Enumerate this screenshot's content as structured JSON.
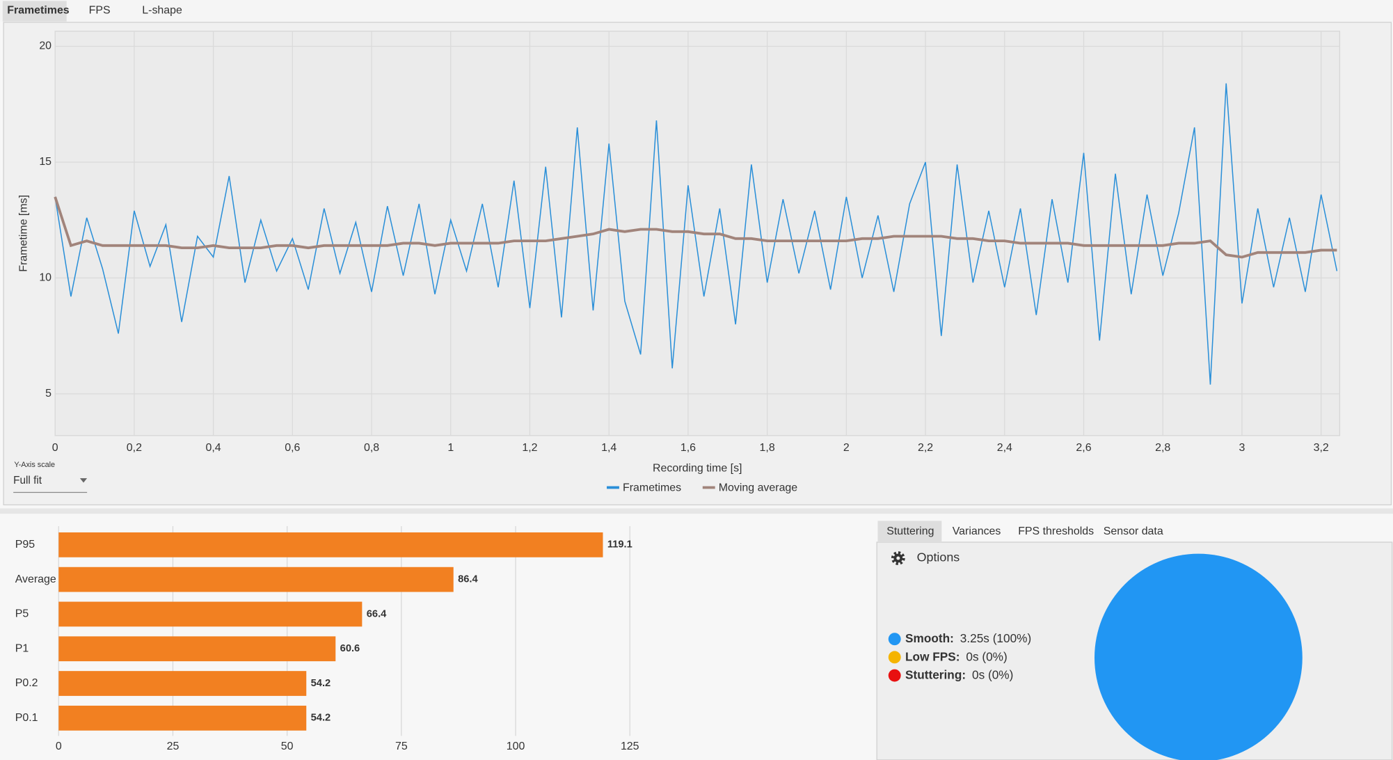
{
  "tabs": [
    "Frametimes",
    "FPS",
    "L-shape"
  ],
  "y_axis_scale": {
    "label": "Y-Axis scale",
    "value": "Full fit"
  },
  "analysis_tabs": [
    "Stuttering",
    "Variances",
    "FPS thresholds",
    "Sensor data"
  ],
  "options": "Options",
  "chart_data": [
    {
      "type": "line",
      "ylabel": "Frametime [ms]",
      "xlabel": "Recording time [s]",
      "xlim": [
        0,
        3.247
      ],
      "ylim": [
        3.2,
        20.65
      ],
      "grid": true,
      "legend": "bottom",
      "yticks": [
        5,
        10,
        15,
        20
      ],
      "xticks": [
        0,
        {
          "value": 0.2,
          "label": "0,2"
        },
        {
          "value": 0.4,
          "label": "0,4"
        },
        {
          "value": 0.6,
          "label": "0,6"
        },
        {
          "value": 0.8,
          "label": "0,8"
        },
        1,
        {
          "value": 1.2,
          "label": "1,2"
        },
        {
          "value": 1.4,
          "label": "1,4"
        },
        {
          "value": 1.6,
          "label": "1,6"
        },
        {
          "value": 1.8,
          "label": "1,8"
        },
        2,
        {
          "value": 2.2,
          "label": "2,2"
        },
        {
          "value": 2.4,
          "label": "2,4"
        },
        {
          "value": 2.6,
          "label": "2,6"
        },
        {
          "value": 2.8,
          "label": "2,8"
        },
        3,
        {
          "value": 3.2,
          "label": "3,2"
        }
      ],
      "x": [
        0,
        0.04,
        0.08,
        0.12,
        0.16,
        0.2,
        0.24,
        0.28,
        0.32,
        0.36,
        0.4,
        0.44,
        0.48,
        0.52,
        0.56,
        0.6,
        0.64,
        0.68,
        0.72,
        0.76,
        0.8,
        0.84,
        0.88,
        0.92,
        0.96,
        1,
        1.04,
        1.08,
        1.12,
        1.16,
        1.2,
        1.24,
        1.28,
        1.32,
        1.36,
        1.4,
        1.44,
        1.48,
        1.52,
        1.56,
        1.6,
        1.64,
        1.68,
        1.72,
        1.76,
        1.8,
        1.84,
        1.88,
        1.92,
        1.96,
        2,
        2.04,
        2.08,
        2.12,
        2.16,
        2.2,
        2.24,
        2.28,
        2.32,
        2.36,
        2.4,
        2.44,
        2.48,
        2.52,
        2.56,
        2.6,
        2.64,
        2.68,
        2.72,
        2.76,
        2.8,
        2.84,
        2.88,
        2.92,
        2.96,
        3,
        3.04,
        3.08,
        3.12,
        3.16,
        3.2,
        3.24
      ],
      "series": [
        {
          "name": "Frametimes",
          "color": "#2a8fd8",
          "values": [
            13.5,
            9.2,
            12.6,
            10.4,
            7.6,
            12.9,
            10.5,
            12.3,
            8.1,
            11.8,
            10.9,
            14.4,
            9.8,
            12.5,
            10.3,
            11.7,
            9.5,
            13.0,
            10.2,
            12.4,
            9.4,
            13.1,
            10.1,
            13.2,
            9.3,
            12.5,
            10.3,
            13.2,
            9.6,
            14.2,
            8.7,
            14.8,
            8.3,
            16.5,
            8.6,
            15.8,
            9.0,
            6.7,
            16.8,
            6.1,
            14.0,
            9.2,
            13.0,
            8.0,
            14.9,
            9.8,
            13.4,
            10.2,
            12.9,
            9.5,
            13.5,
            10.0,
            12.7,
            9.4,
            13.2,
            15.0,
            7.5,
            14.9,
            9.8,
            12.9,
            9.6,
            13.0,
            8.4,
            13.4,
            9.8,
            15.4,
            7.3,
            14.5,
            9.3,
            13.6,
            10.1,
            12.8,
            16.5,
            5.4,
            18.4,
            8.9,
            13.0,
            9.6,
            12.6,
            9.4,
            13.6,
            10.3
          ]
        },
        {
          "name": "Moving average",
          "color": "#a1847b",
          "values": [
            13.5,
            11.4,
            11.6,
            11.4,
            11.4,
            11.4,
            11.4,
            11.4,
            11.3,
            11.3,
            11.4,
            11.3,
            11.3,
            11.3,
            11.4,
            11.4,
            11.3,
            11.4,
            11.4,
            11.4,
            11.4,
            11.4,
            11.5,
            11.5,
            11.4,
            11.5,
            11.5,
            11.5,
            11.5,
            11.6,
            11.6,
            11.6,
            11.7,
            11.8,
            11.9,
            12.1,
            12.0,
            12.1,
            12.1,
            12.0,
            12.0,
            11.9,
            11.9,
            11.7,
            11.7,
            11.6,
            11.6,
            11.6,
            11.6,
            11.6,
            11.6,
            11.7,
            11.7,
            11.8,
            11.8,
            11.8,
            11.8,
            11.7,
            11.7,
            11.6,
            11.6,
            11.5,
            11.5,
            11.5,
            11.5,
            11.4,
            11.4,
            11.4,
            11.4,
            11.4,
            11.4,
            11.5,
            11.5,
            11.6,
            11.0,
            10.9,
            11.1,
            11.1,
            11.1,
            11.1,
            11.2,
            11.2
          ]
        }
      ]
    },
    {
      "type": "barh",
      "categories": [
        "P95",
        "Average",
        "P5",
        "P1",
        "P0.2",
        "P0.1"
      ],
      "values": [
        119.1,
        86.4,
        66.4,
        60.6,
        54.2,
        54.2
      ],
      "color": "#f28021",
      "xlim": [
        0,
        125
      ],
      "xticks": [
        0,
        25,
        50,
        75,
        100,
        125
      ],
      "grid": true
    },
    {
      "type": "pie",
      "categories": [
        "Smooth:",
        "Low FPS:",
        "Stuttering:"
      ],
      "values": [
        100,
        0,
        0
      ],
      "value_labels": [
        "3.25s (100%)",
        "0s (0%)",
        "0s (0%)"
      ],
      "colors": [
        "#2196f3",
        "#f5b400",
        "#e81010"
      ]
    }
  ]
}
